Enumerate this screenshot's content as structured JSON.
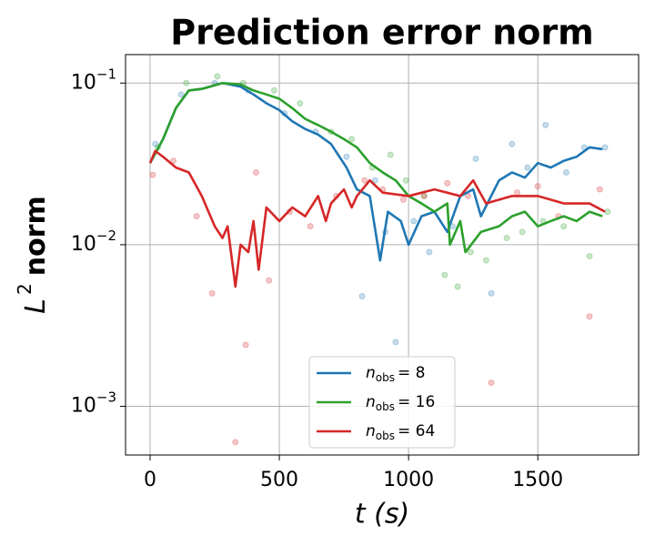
{
  "chart_data": {
    "type": "line",
    "title": "Prediction error norm",
    "x_label": "t (s)",
    "y_label": {
      "symbol": "L",
      "superscript": "2",
      "text": "norm"
    },
    "xlim": [
      -95,
      1890
    ],
    "ylim": [
      0.0005,
      0.15
    ],
    "xticks": [
      0,
      500,
      1000,
      1500
    ],
    "yticks": [
      {
        "value": 0.001,
        "label": "10",
        "exponent": "−3"
      },
      {
        "value": 0.01,
        "label": "10",
        "exponent": "−2"
      },
      {
        "value": 0.1,
        "label": "10",
        "exponent": "−1"
      }
    ],
    "log_y": true,
    "grid": true,
    "legend": "lower center",
    "series": [
      {
        "name": {
          "symbol": "n",
          "subscript": "obs",
          "equals": "= 8"
        },
        "color": "#1f77b4",
        "x": [
          0,
          50,
          100,
          150,
          200,
          280,
          350,
          400,
          450,
          500,
          550,
          600,
          650,
          700,
          760,
          800,
          850,
          890,
          920,
          970,
          1000,
          1050,
          1100,
          1150,
          1200,
          1250,
          1280,
          1350,
          1400,
          1450,
          1500,
          1550,
          1600,
          1650,
          1700,
          1750
        ],
        "values": [
          0.032,
          0.045,
          0.07,
          0.09,
          0.092,
          0.1,
          0.095,
          0.085,
          0.075,
          0.068,
          0.058,
          0.052,
          0.048,
          0.042,
          0.03,
          0.022,
          0.02,
          0.008,
          0.016,
          0.014,
          0.01,
          0.015,
          0.016,
          0.012,
          0.02,
          0.022,
          0.015,
          0.025,
          0.028,
          0.026,
          0.032,
          0.03,
          0.033,
          0.035,
          0.04,
          0.039
        ],
        "points": {
          "x": [
            20,
            120,
            250,
            380,
            520,
            640,
            760,
            820,
            870,
            910,
            950,
            1020,
            1080,
            1170,
            1260,
            1320,
            1400,
            1460,
            1530,
            1610,
            1680,
            1760
          ],
          "values": [
            0.042,
            0.085,
            0.1,
            0.09,
            0.065,
            0.05,
            0.035,
            0.0048,
            0.025,
            0.012,
            0.0025,
            0.014,
            0.009,
            0.013,
            0.034,
            0.005,
            0.042,
            0.03,
            0.055,
            0.028,
            0.04,
            0.04
          ]
        }
      },
      {
        "name": {
          "symbol": "n",
          "subscript": "obs",
          "equals": "= 16"
        },
        "color": "#2ca02c",
        "x": [
          0,
          50,
          100,
          150,
          200,
          280,
          350,
          400,
          450,
          500,
          550,
          600,
          650,
          700,
          750,
          800,
          850,
          900,
          950,
          1000,
          1050,
          1100,
          1150,
          1160,
          1200,
          1220,
          1280,
          1350,
          1400,
          1450,
          1500,
          1550,
          1600,
          1650,
          1700,
          1750
        ],
        "values": [
          0.032,
          0.045,
          0.07,
          0.09,
          0.092,
          0.1,
          0.098,
          0.09,
          0.085,
          0.08,
          0.07,
          0.06,
          0.055,
          0.05,
          0.045,
          0.04,
          0.032,
          0.028,
          0.025,
          0.02,
          0.018,
          0.016,
          0.018,
          0.01,
          0.014,
          0.009,
          0.012,
          0.013,
          0.015,
          0.016,
          0.013,
          0.014,
          0.015,
          0.014,
          0.016,
          0.015
        ],
        "points": {
          "x": [
            30,
            140,
            260,
            360,
            480,
            580,
            700,
            780,
            860,
            930,
            990,
            1060,
            1140,
            1190,
            1240,
            1300,
            1380,
            1440,
            1520,
            1600,
            1700,
            1770
          ],
          "values": [
            0.04,
            0.1,
            0.11,
            0.1,
            0.09,
            0.075,
            0.05,
            0.045,
            0.03,
            0.036,
            0.025,
            0.02,
            0.0065,
            0.0055,
            0.009,
            0.008,
            0.011,
            0.012,
            0.014,
            0.013,
            0.0085,
            0.016
          ]
        }
      },
      {
        "name": {
          "symbol": "n",
          "subscript": "obs",
          "equals": "= 64"
        },
        "color": "#d62728",
        "x": [
          0,
          20,
          50,
          100,
          150,
          200,
          250,
          280,
          300,
          330,
          350,
          380,
          400,
          420,
          450,
          500,
          550,
          600,
          650,
          680,
          700,
          750,
          780,
          800,
          850,
          900,
          1000,
          1100,
          1200,
          1250,
          1300,
          1400,
          1500,
          1600,
          1700,
          1760
        ],
        "values": [
          0.032,
          0.038,
          0.035,
          0.03,
          0.028,
          0.02,
          0.013,
          0.011,
          0.013,
          0.0055,
          0.01,
          0.009,
          0.014,
          0.007,
          0.017,
          0.014,
          0.017,
          0.015,
          0.02,
          0.014,
          0.018,
          0.022,
          0.017,
          0.02,
          0.025,
          0.021,
          0.02,
          0.022,
          0.02,
          0.025,
          0.018,
          0.02,
          0.02,
          0.018,
          0.018,
          0.016
        ],
        "points": {
          "x": [
            10,
            90,
            180,
            240,
            330,
            370,
            410,
            460,
            540,
            620,
            720,
            830,
            900,
            980,
            1060,
            1150,
            1230,
            1320,
            1420,
            1500,
            1580,
            1700,
            1740
          ],
          "values": [
            0.027,
            0.033,
            0.015,
            0.005,
            0.0006,
            0.0024,
            0.028,
            0.006,
            0.016,
            0.013,
            0.02,
            0.025,
            0.022,
            0.019,
            0.02,
            0.024,
            0.02,
            0.0014,
            0.021,
            0.023,
            0.015,
            0.0036,
            0.022
          ]
        }
      }
    ]
  }
}
